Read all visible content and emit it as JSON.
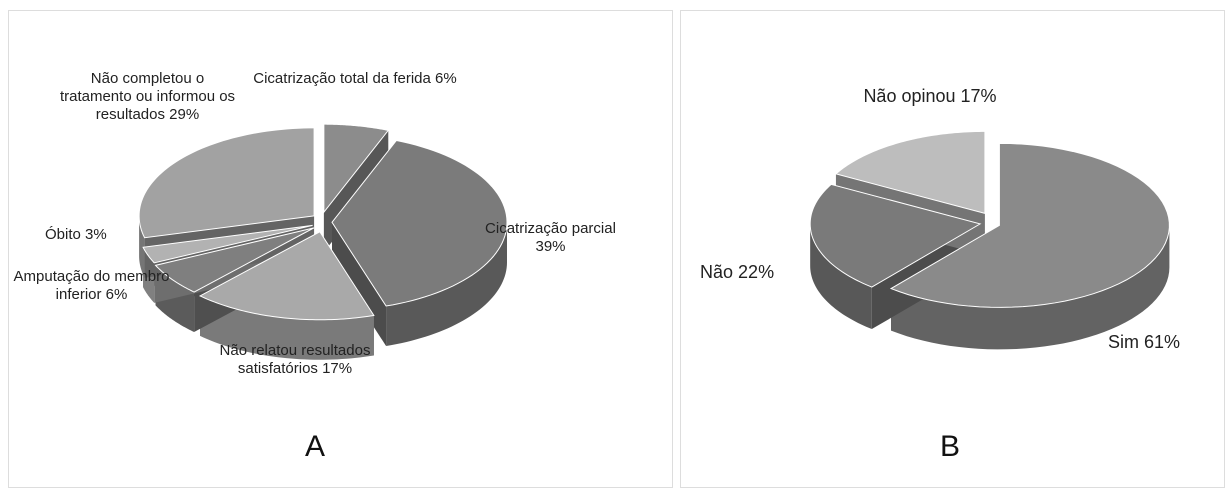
{
  "chart_data": [
    {
      "type": "pie",
      "title": "A",
      "categories": [
        "Cicatrização total da ferida",
        "Cicatrização parcial",
        "Não relatou resultados satisfatórios",
        "Amputação do membro inferior",
        "Óbito",
        "Não completou o tratamento ou informou os resultados"
      ],
      "values": [
        6,
        39,
        17,
        6,
        3,
        29
      ],
      "value_labels": [
        "6%",
        "39%",
        "17%",
        "6%",
        "3%",
        "29%"
      ],
      "colors": [
        "#8c8c8c",
        "#7b7b7b",
        "#a9a9a9",
        "#7f7f7f",
        "#b2b2b2",
        "#a2a2a2"
      ]
    },
    {
      "type": "pie",
      "title": "B",
      "categories": [
        "Sim",
        "Não",
        "Não opinou"
      ],
      "values": [
        61,
        22,
        17
      ],
      "value_labels": [
        "61%",
        "22%",
        "17%"
      ],
      "colors": [
        "#8a8a8a",
        "#7a7a7a",
        "#bdbdbd"
      ]
    }
  ]
}
